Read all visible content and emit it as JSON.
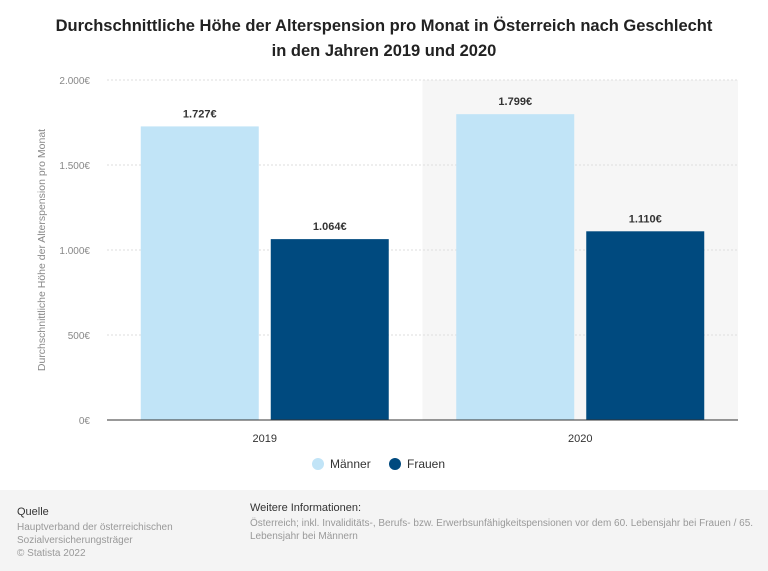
{
  "title_line1": "Durchschnittliche Höhe der Alterspension pro Monat in Österreich nach Geschlecht",
  "title_line2": "in den Jahren 2019 und 2020",
  "chart_data": {
    "type": "bar",
    "categories": [
      "2019",
      "2020"
    ],
    "series": [
      {
        "name": "Männer",
        "values": [
          1727,
          1799
        ],
        "labels": [
          "1.727€",
          "1.799€"
        ],
        "color": "#c1e4f7"
      },
      {
        "name": "Frauen",
        "values": [
          1064,
          1110
        ],
        "labels": [
          "1.064€",
          "1.110€"
        ],
        "color": "#004a7f"
      }
    ],
    "ylabel": "Durchschnittliche Höhe der Alterspension pro Monat",
    "ylim": [
      0,
      2000
    ],
    "yticks": [
      {
        "v": 0,
        "label": "0€"
      },
      {
        "v": 500,
        "label": "500€"
      },
      {
        "v": 1000,
        "label": "1.000€"
      },
      {
        "v": 1500,
        "label": "1.500€"
      },
      {
        "v": 2000,
        "label": "2.000€"
      }
    ],
    "grid": true,
    "legend": "bottom",
    "highlighted_category": "2020"
  },
  "footer": {
    "source_heading": "Quelle",
    "source_lines": [
      "Hauptverband der österreichischen",
      "Sozialversicherungsträger",
      "© Statista 2022"
    ],
    "info_heading": "Weitere Informationen:",
    "info_text": "Österreich; inkl. Invaliditäts-, Berufs- bzw. Erwerbsunfähigkeitspensionen vor dem 60. Lebensjahr bei Frauen / 65. Lebensjahr bei Männern"
  }
}
